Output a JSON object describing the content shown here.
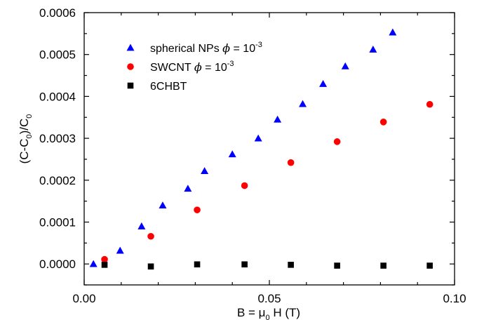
{
  "chart_data": {
    "type": "scatter",
    "xlabel": {
      "main": "B = ",
      "mu": "μ",
      "sub": "0",
      "rest": " H (T)"
    },
    "ylabel": {
      "a": "(C-C",
      "a_sub": "0",
      "b": ")/C",
      "b_sub": "0"
    },
    "xlim": [
      0,
      0.1
    ],
    "ylim": [
      -5e-05,
      0.0006
    ],
    "x_ticks": [
      0.0,
      0.05,
      0.1
    ],
    "x_tick_labels": [
      "0.00",
      "0.05",
      "0.10"
    ],
    "y_ticks": [
      0.0,
      0.0001,
      0.0002,
      0.0003,
      0.0004,
      0.0005,
      0.0006
    ],
    "y_tick_labels": [
      "0.0000",
      "0.0001",
      "0.0002",
      "0.0003",
      "0.0004",
      "0.0005",
      "0.0006"
    ],
    "grid": false,
    "legend_position": "top-left",
    "series": [
      {
        "name": "spherical NPs",
        "legend_text": {
          "label": "spherical NPs ",
          "phi": "ϕ",
          "eq": " = 10",
          "exp": "-3"
        },
        "marker": "triangle",
        "color": "#0000ff",
        "x": [
          0.0025,
          0.0097,
          0.0155,
          0.0212,
          0.028,
          0.0325,
          0.04,
          0.047,
          0.0522,
          0.059,
          0.0645,
          0.0705,
          0.078,
          0.0833
        ],
        "y": [
          0.0,
          3.2e-05,
          9e-05,
          0.00014,
          0.00018,
          0.000222,
          0.000262,
          0.0003,
          0.000345,
          0.000382,
          0.00043,
          0.000472,
          0.000512,
          0.000553
        ]
      },
      {
        "name": "SWCNT",
        "legend_text": {
          "label": "SWCNT ",
          "phi": "ϕ",
          "eq": " = 10",
          "exp": "-3"
        },
        "marker": "circle",
        "color": "#ff0000",
        "x": [
          0.0055,
          0.018,
          0.0305,
          0.0433,
          0.0558,
          0.0683,
          0.0808,
          0.0933
        ],
        "y": [
          1.1e-05,
          6.6e-05,
          0.000129,
          0.000187,
          0.000242,
          0.000292,
          0.000339,
          0.000381
        ]
      },
      {
        "name": "6CHBT",
        "legend_text": {
          "label": "6CHBT"
        },
        "marker": "square",
        "color": "#000000",
        "x": [
          0.0055,
          0.018,
          0.0305,
          0.0433,
          0.0558,
          0.0683,
          0.0808,
          0.0933
        ],
        "y": [
          -2e-06,
          -6e-06,
          -1e-06,
          -1e-06,
          -2e-06,
          -4e-06,
          -4e-06,
          -4e-06
        ]
      }
    ]
  }
}
